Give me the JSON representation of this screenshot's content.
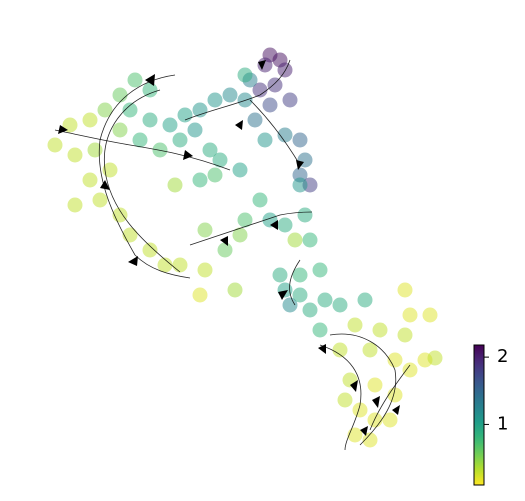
{
  "chart_data": {
    "type": "scatter",
    "x": [
      270,
      280,
      265,
      285,
      275,
      260,
      290,
      270,
      250,
      245,
      230,
      215,
      200,
      185,
      300,
      305,
      300,
      310,
      300,
      285,
      265,
      255,
      245,
      135,
      150,
      120,
      105,
      130,
      150,
      170,
      180,
      195,
      210,
      200,
      175,
      160,
      140,
      120,
      90,
      70,
      55,
      75,
      95,
      110,
      90,
      75,
      100,
      120,
      130,
      150,
      165,
      180,
      205,
      200,
      235,
      240,
      220,
      215,
      205,
      225,
      240,
      245,
      260,
      270,
      285,
      295,
      310,
      305,
      280,
      300,
      320,
      285,
      290,
      300,
      310,
      325,
      340,
      365,
      320,
      405,
      410,
      430,
      355,
      380,
      405,
      340,
      370,
      395,
      410,
      425,
      435,
      350,
      375,
      395,
      360,
      375,
      355,
      370,
      390,
      345
    ],
    "values": [
      55,
      60,
      65,
      70,
      85,
      90,
      100,
      105,
      80,
      100,
      95,
      100,
      110,
      115,
      140,
      160,
      175,
      185,
      185,
      135,
      140,
      120,
      75,
      80,
      90,
      95,
      110,
      110,
      120,
      125,
      140,
      130,
      150,
      180,
      185,
      150,
      140,
      130,
      120,
      125,
      145,
      155,
      150,
      170,
      180,
      205,
      200,
      215,
      235,
      250,
      265,
      265,
      270,
      295,
      290,
      170,
      160,
      175,
      230,
      250,
      235,
      220,
      200,
      220,
      225,
      240,
      240,
      215,
      275,
      275,
      270,
      290,
      305,
      295,
      310,
      300,
      305,
      300,
      330,
      290,
      315,
      315,
      325,
      330,
      335,
      350,
      350,
      360,
      370,
      360,
      358,
      380,
      385,
      395,
      410,
      420,
      435,
      440,
      420,
      400
    ],
    "color_values": [
      2.1,
      2.1,
      2.0,
      2.0,
      1.9,
      1.9,
      1.8,
      1.7,
      1.3,
      1.2,
      1.2,
      1.1,
      1.1,
      1.0,
      1.5,
      1.4,
      1.5,
      1.8,
      1.1,
      1.3,
      1.1,
      1.4,
      0.9,
      0.7,
      0.8,
      0.6,
      0.5,
      0.8,
      0.9,
      1.0,
      0.9,
      1.1,
      0.9,
      0.8,
      0.4,
      0.7,
      0.8,
      0.5,
      0.3,
      0.3,
      0.3,
      0.3,
      0.4,
      0.3,
      0.3,
      0.3,
      0.3,
      0.3,
      0.3,
      0.3,
      0.3,
      0.3,
      0.3,
      0.2,
      0.4,
      1.0,
      0.9,
      0.7,
      0.5,
      0.6,
      0.5,
      0.7,
      0.8,
      1.0,
      0.9,
      0.4,
      0.8,
      0.9,
      0.9,
      0.8,
      0.8,
      1.0,
      1.2,
      0.9,
      0.9,
      0.9,
      0.9,
      0.9,
      0.8,
      0.2,
      0.2,
      0.2,
      0.3,
      0.3,
      0.3,
      0.3,
      0.3,
      0.2,
      0.2,
      0.2,
      0.3,
      0.3,
      0.2,
      0.2,
      0.2,
      0.2,
      0.2,
      0.2,
      0.2,
      0.3
    ],
    "xlim": [
      0,
      470
    ],
    "ylim": [
      501,
      0
    ],
    "colormap": "viridis_r",
    "clim": [
      0.1,
      2.18
    ],
    "cticks": [
      1,
      2
    ]
  }
}
